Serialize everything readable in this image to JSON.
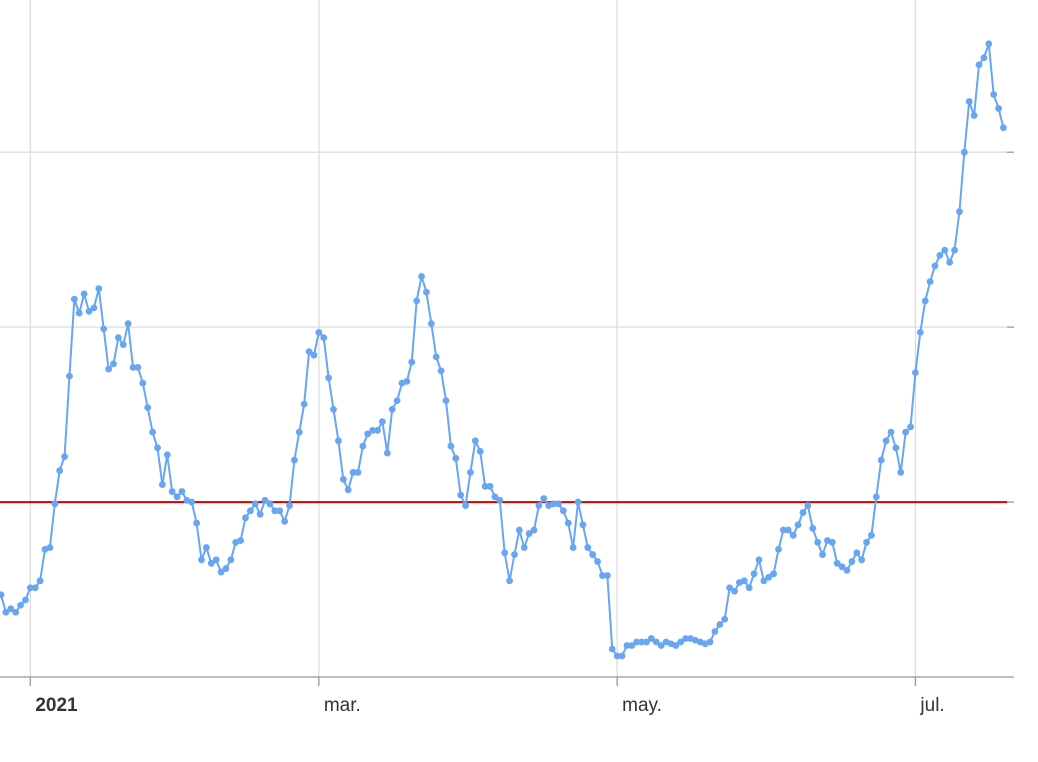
{
  "chart_data": {
    "type": "line",
    "categories": [
      null,
      null,
      null,
      null,
      null,
      null,
      "2021",
      null,
      null,
      null,
      null,
      null,
      null,
      null,
      null,
      null,
      null,
      null,
      null,
      null,
      null,
      null,
      null,
      null,
      null,
      null,
      null,
      null,
      null,
      null,
      null,
      null,
      null,
      null,
      null,
      null,
      null,
      null,
      null,
      null,
      null,
      null,
      null,
      null,
      null,
      null,
      null,
      null,
      null,
      null,
      null,
      null,
      null,
      null,
      null,
      null,
      null,
      null,
      null,
      null,
      null,
      null,
      null,
      null,
      null,
      "mar.",
      null,
      null,
      null,
      null,
      null,
      null,
      null,
      null,
      null,
      null,
      null,
      null,
      null,
      null,
      null,
      null,
      null,
      null,
      null,
      null,
      null,
      null,
      null,
      null,
      null,
      null,
      null,
      null,
      null,
      null,
      null,
      null,
      null,
      null,
      null,
      null,
      null,
      null,
      null,
      null,
      null,
      null,
      null,
      null,
      null,
      null,
      null,
      null,
      null,
      null,
      null,
      null,
      null,
      null,
      null,
      null,
      null,
      null,
      null,
      null,
      "may.",
      null,
      null,
      null,
      null,
      null,
      null,
      null,
      null,
      null,
      null,
      null,
      null,
      null,
      null,
      null,
      null,
      null,
      null,
      null,
      null,
      null,
      null,
      null,
      null,
      null,
      null,
      null,
      null,
      null,
      null,
      null,
      null,
      null,
      null,
      null,
      null,
      null,
      null,
      null,
      null,
      null,
      null,
      null,
      null,
      null,
      null,
      null,
      null,
      null,
      null,
      null,
      null,
      null,
      null,
      null,
      null,
      null,
      null,
      null,
      null,
      "jul.",
      null,
      null,
      null,
      null,
      null,
      null,
      null,
      null,
      null,
      null,
      null,
      null,
      null,
      null,
      null,
      null,
      null,
      null
    ],
    "values": [
      0.47,
      0.37,
      0.39,
      0.37,
      0.41,
      0.44,
      0.51,
      0.51,
      0.55,
      0.73,
      0.74,
      0.99,
      1.18,
      1.26,
      1.72,
      2.16,
      2.08,
      2.19,
      2.09,
      2.11,
      2.22,
      1.99,
      1.76,
      1.79,
      1.94,
      1.9,
      2.02,
      1.77,
      1.77,
      1.68,
      1.54,
      1.4,
      1.31,
      1.1,
      1.27,
      1.06,
      1.03,
      1.06,
      1.01,
      1.0,
      0.88,
      0.67,
      0.74,
      0.65,
      0.67,
      0.6,
      0.62,
      0.67,
      0.77,
      0.78,
      0.91,
      0.95,
      0.99,
      0.93,
      1.01,
      0.99,
      0.95,
      0.95,
      0.89,
      0.98,
      1.24,
      1.4,
      1.56,
      1.86,
      1.84,
      1.97,
      1.94,
      1.71,
      1.53,
      1.35,
      1.13,
      1.07,
      1.17,
      1.17,
      1.32,
      1.39,
      1.41,
      1.41,
      1.46,
      1.28,
      1.53,
      1.58,
      1.68,
      1.69,
      1.8,
      2.15,
      2.29,
      2.2,
      2.02,
      1.83,
      1.75,
      1.58,
      1.32,
      1.25,
      1.04,
      0.98,
      1.17,
      1.35,
      1.29,
      1.09,
      1.09,
      1.03,
      1.01,
      0.71,
      0.55,
      0.7,
      0.84,
      0.74,
      0.82,
      0.84,
      0.98,
      1.02,
      0.98,
      0.99,
      0.99,
      0.95,
      0.88,
      0.74,
      1.0,
      0.87,
      0.74,
      0.7,
      0.66,
      0.58,
      0.58,
      0.16,
      0.12,
      0.12,
      0.18,
      0.18,
      0.2,
      0.2,
      0.2,
      0.22,
      0.2,
      0.18,
      0.2,
      0.19,
      0.18,
      0.2,
      0.22,
      0.22,
      0.21,
      0.2,
      0.19,
      0.2,
      0.26,
      0.3,
      0.33,
      0.51,
      0.49,
      0.54,
      0.55,
      0.51,
      0.59,
      0.67,
      0.55,
      0.57,
      0.59,
      0.73,
      0.84,
      0.84,
      0.81,
      0.87,
      0.94,
      0.98,
      0.85,
      0.77,
      0.7,
      0.78,
      0.77,
      0.65,
      0.63,
      0.61,
      0.66,
      0.71,
      0.67,
      0.77,
      0.81,
      1.03,
      1.24,
      1.35,
      1.4,
      1.31,
      1.17,
      1.4,
      1.43,
      1.74,
      1.97,
      2.15,
      2.26,
      2.35,
      2.41,
      2.44,
      2.37,
      2.44,
      2.66,
      3.0,
      3.29,
      3.21,
      3.5,
      3.54,
      3.62,
      3.33,
      3.25,
      3.14
    ],
    "color": "#68a5f3",
    "ylim": [
      0,
      3.87
    ],
    "yticks": [
      0,
      1,
      2,
      3
    ],
    "grid": true,
    "reference_line": {
      "value": 1,
      "color": "#d40000"
    }
  }
}
